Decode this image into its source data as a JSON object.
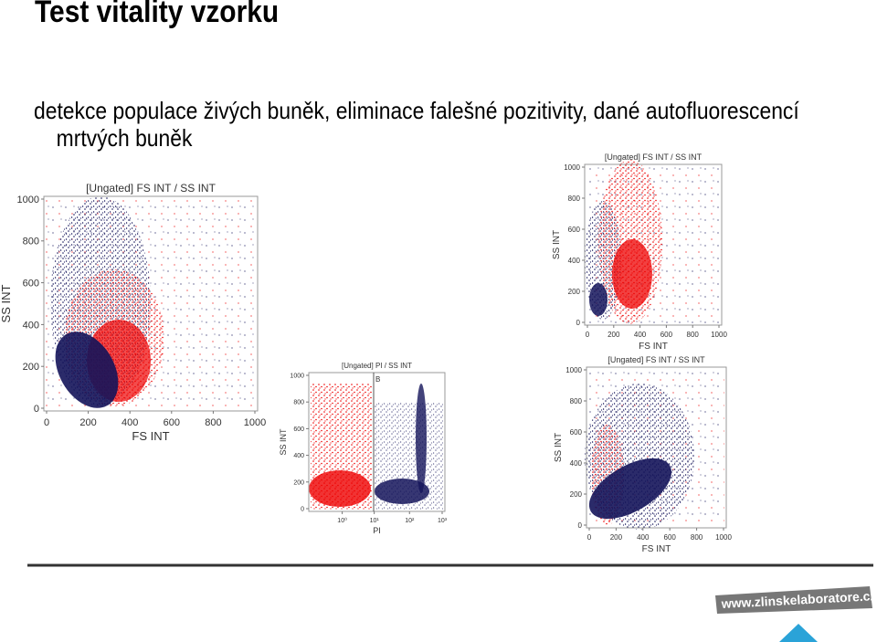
{
  "title": "Test vitality vzorku",
  "subtitle": "detekce populace živých buněk, eliminace falešné pozitivity, dané autofluorescencí mrtvých buněk",
  "plots": [
    {
      "title": "[Ungated] FS INT / SS INT",
      "x_label": "FS INT",
      "y_label": "SS INT",
      "xticks": [
        0,
        200,
        400,
        600,
        800,
        1000
      ],
      "yticks": [
        0,
        200,
        400,
        600,
        800,
        1000
      ]
    },
    {
      "title": "[Ungated] PI / SS INT",
      "x_label": "PI",
      "y_label": "SS INT",
      "gate": "B",
      "xticks": [
        "10⁰",
        "10¹",
        "10²",
        "10³"
      ],
      "yticks": [
        0,
        200,
        400,
        600,
        800,
        1000
      ]
    },
    {
      "title": "[Ungated] FS INT / SS INT",
      "x_label": "FS INT",
      "y_label": "SS INT",
      "xticks": [
        0,
        200,
        400,
        600,
        800,
        1000
      ],
      "yticks": [
        0,
        200,
        400,
        600,
        800,
        1000
      ]
    },
    {
      "title": "[Ungated] FS INT / SS INT",
      "x_label": "FS INT",
      "y_label": "SS INT",
      "xticks": [
        0,
        200,
        400,
        600,
        800,
        1000
      ],
      "yticks": [
        0,
        200,
        400,
        600,
        800,
        1000
      ]
    }
  ],
  "footer": {
    "url": "www.zlinskelaboratore.cz"
  }
}
